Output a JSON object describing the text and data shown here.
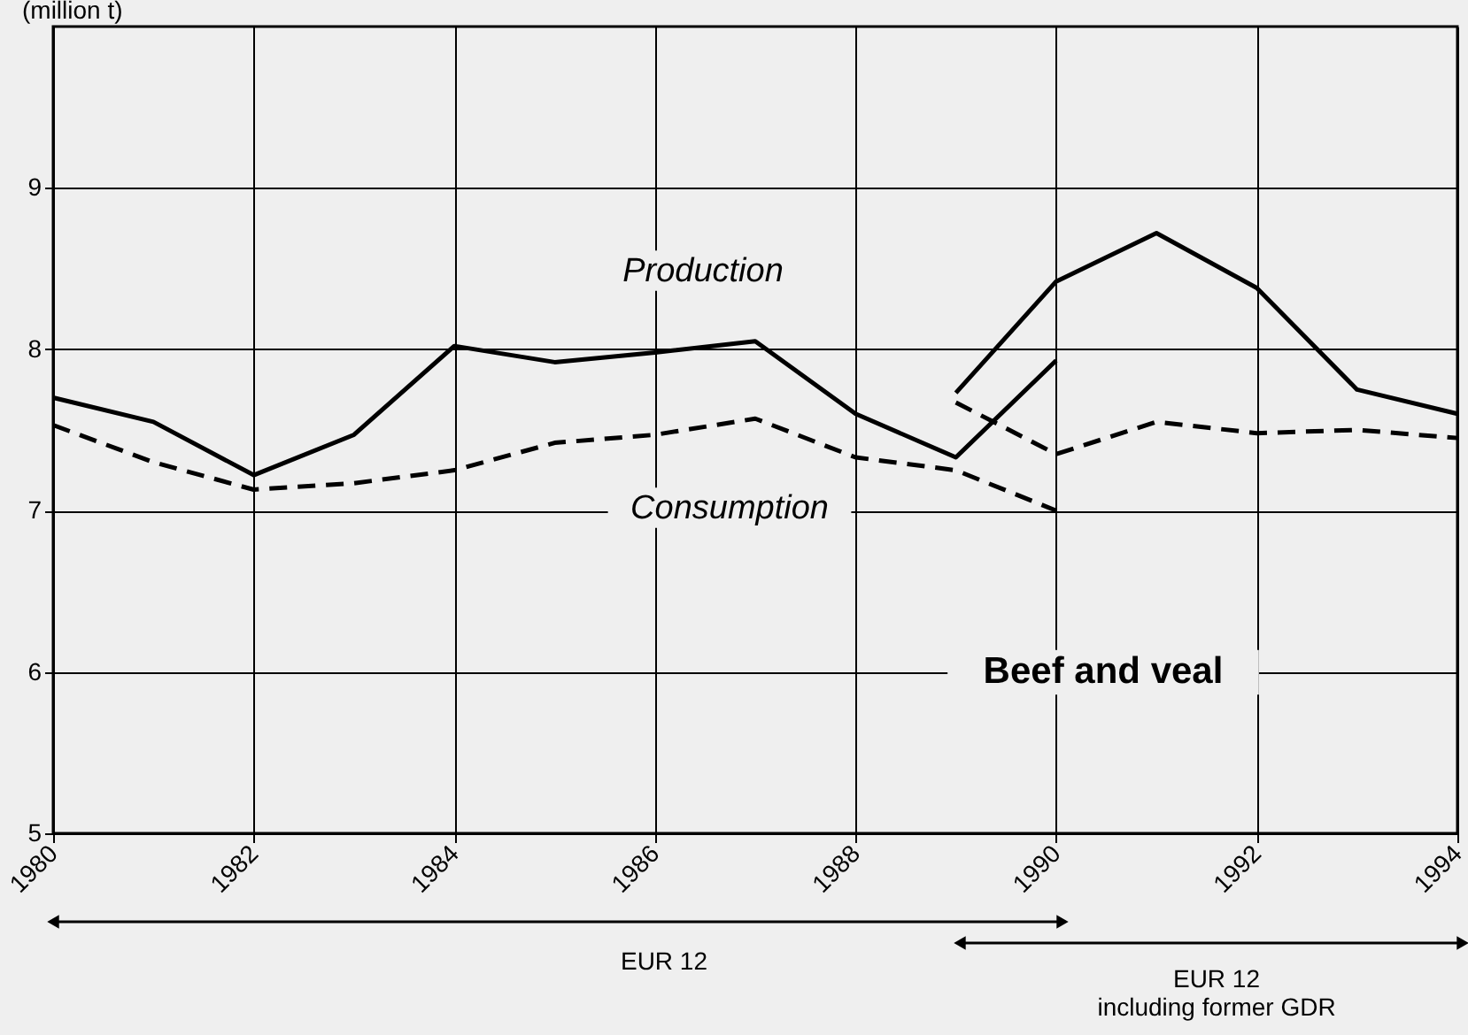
{
  "chart_data": {
    "type": "line",
    "ylabel": "(million t)",
    "xlim": [
      1980,
      1994
    ],
    "xticks": [
      1980,
      1982,
      1984,
      1986,
      1988,
      1990,
      1992,
      1994
    ],
    "ylim": [
      5,
      10
    ],
    "yticks": [
      5,
      6,
      7,
      8,
      9
    ],
    "grid": true,
    "series": [
      {
        "name": "Production",
        "color": "#000000",
        "line_style": "solid",
        "x": [
          1980,
          1981,
          1982,
          1983,
          1984,
          1985,
          1986,
          1987,
          1988,
          1989,
          1990
        ],
        "values": [
          7.7,
          7.55,
          7.22,
          7.47,
          8.02,
          7.92,
          7.98,
          8.05,
          7.6,
          7.33,
          7.93
        ]
      },
      {
        "name": "Consumption",
        "color": "#000000",
        "line_style": "dashed",
        "x": [
          1980,
          1981,
          1982,
          1983,
          1984,
          1985,
          1986,
          1987,
          1988,
          1989,
          1990
        ],
        "values": [
          7.53,
          7.3,
          7.13,
          7.17,
          7.25,
          7.42,
          7.47,
          7.57,
          7.33,
          7.25,
          7.0
        ]
      },
      {
        "color": "#000000",
        "line_style": "solid",
        "x": [
          1989,
          1990,
          1991,
          1992,
          1993,
          1994
        ],
        "values": [
          7.73,
          8.42,
          8.72,
          8.38,
          7.75,
          7.6
        ]
      },
      {
        "color": "#000000",
        "line_style": "dashed",
        "x": [
          1989,
          1990,
          1991,
          1992,
          1993,
          1994
        ],
        "values": [
          7.67,
          7.35,
          7.55,
          7.48,
          7.5,
          7.45
        ]
      }
    ],
    "annotations": [
      "Beef and veal",
      "EUR 12",
      "EUR 12\nincluding former GDR"
    ]
  }
}
